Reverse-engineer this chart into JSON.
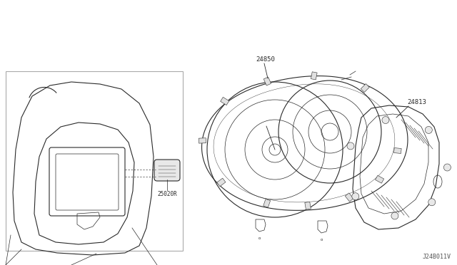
{
  "bg_color": "#ffffff",
  "line_color": "#2a2a2a",
  "text_color": "#2a2a2a",
  "label_24850": "24850",
  "label_24813": "24813",
  "label_25020R": "25020R",
  "label_diagram_id": "J24B011V",
  "fig_width": 6.4,
  "fig_height": 3.72,
  "dpi": 100
}
